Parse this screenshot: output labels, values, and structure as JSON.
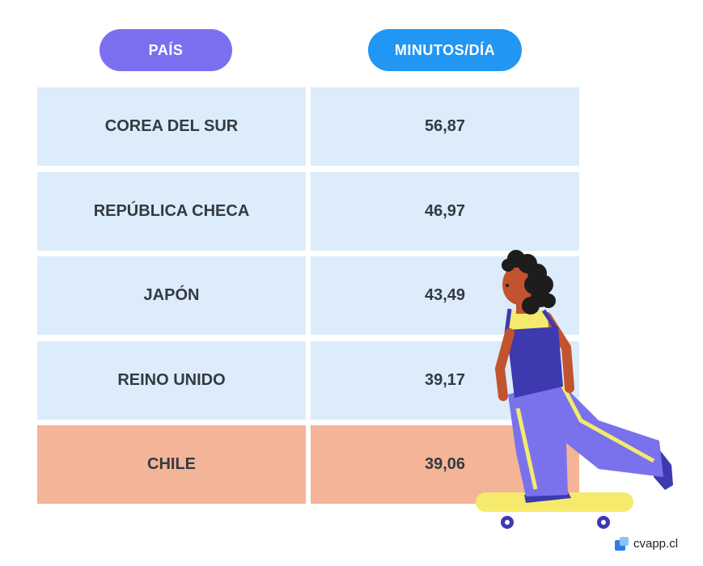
{
  "chart_data": {
    "type": "table",
    "columns": [
      "PAÍS",
      "MINUTOS/DÍA"
    ],
    "rows": [
      {
        "country": "COREA DEL SUR",
        "minutes": "56,87",
        "highlight": false
      },
      {
        "country": "REPÚBLICA CHECA",
        "minutes": "46,97",
        "highlight": false
      },
      {
        "country": "JAPÓN",
        "minutes": "43,49",
        "highlight": false
      },
      {
        "country": "REINO UNIDO",
        "minutes": "39,17",
        "highlight": false
      },
      {
        "country": "CHILE",
        "minutes": "39,06",
        "highlight": true
      }
    ],
    "colors": {
      "header_country": "#7b6ff0",
      "header_minutes": "#2196f3",
      "row": "#dcecfb",
      "highlight_row": "#f4b497"
    }
  },
  "branding": {
    "logo_text": "cvapp.cl",
    "logo_icon": "cvapp-logo-icon"
  },
  "illustration": {
    "icon": "skateboarder-illustration"
  }
}
